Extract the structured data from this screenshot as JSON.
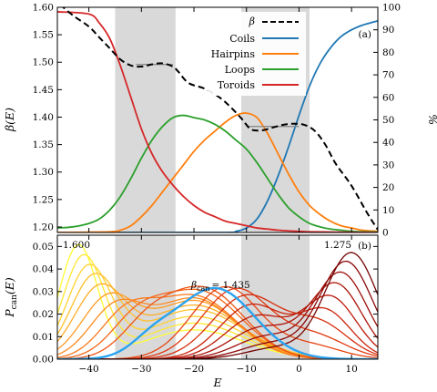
{
  "chart_data": [
    {
      "type": "line",
      "panel_label": "(a)",
      "xlim": [
        -46,
        15
      ],
      "ylim": [
        1.19,
        1.6
      ],
      "y2lim": [
        0,
        100
      ],
      "ylabel": "β(E)",
      "y2label": "%",
      "xticks": [
        -40,
        -30,
        -20,
        -10,
        0,
        10
      ],
      "yticks": [
        1.2,
        1.25,
        1.3,
        1.35,
        1.4,
        1.45,
        1.5,
        1.55,
        1.6
      ],
      "y2ticks": [
        0,
        10,
        20,
        30,
        40,
        50,
        60,
        70,
        80,
        90,
        100
      ],
      "grid": false,
      "legend_position": "top-right",
      "shaded_x_ranges": [
        [
          -35,
          -23.5
        ],
        [
          -11,
          2
        ]
      ],
      "maxwell_lines": [
        {
          "x": [
            -31,
            -24
          ],
          "y": 1.496
        },
        {
          "x": [
            -10,
            0
          ],
          "y": 1.383
        }
      ],
      "beta_series": {
        "name": "β",
        "color": "#000000",
        "style": "dashed",
        "x": [
          -45.5,
          -43,
          -40,
          -38,
          -36,
          -34,
          -32,
          -30,
          -28,
          -26,
          -24,
          -23,
          -21,
          -18,
          -15,
          -13,
          -11,
          -10,
          -9,
          -7,
          -5,
          -3,
          -1,
          1,
          3,
          5,
          7,
          10,
          13,
          15
        ],
        "y": [
          1.605,
          1.585,
          1.565,
          1.545,
          1.525,
          1.505,
          1.494,
          1.492,
          1.496,
          1.498,
          1.492,
          1.483,
          1.462,
          1.452,
          1.435,
          1.418,
          1.398,
          1.386,
          1.377,
          1.376,
          1.381,
          1.386,
          1.388,
          1.386,
          1.375,
          1.35,
          1.315,
          1.275,
          1.225,
          1.195
        ]
      },
      "series": [
        {
          "name": "Coils",
          "color": "#1f77b4",
          "x": [
            -46,
            -15,
            -12,
            -10,
            -8,
            -6,
            -4,
            -2,
            0,
            2,
            4,
            6,
            8,
            10,
            12,
            15
          ],
          "y": [
            0,
            0,
            0.5,
            2,
            6,
            14,
            25,
            38,
            52,
            65,
            75,
            82,
            87,
            90,
            92,
            94
          ]
        },
        {
          "name": "Hairpins",
          "color": "#ff7f0e",
          "x": [
            -46,
            -36,
            -34,
            -32,
            -30,
            -28,
            -26,
            -24,
            -22,
            -20,
            -18,
            -16,
            -14,
            -12,
            -10,
            -8,
            -6,
            -4,
            -2,
            0,
            2,
            4,
            6,
            8,
            10,
            12,
            15
          ],
          "y": [
            0,
            0.3,
            1,
            3,
            7,
            12,
            18,
            24,
            30,
            36,
            41,
            45,
            49,
            52,
            53,
            51,
            44,
            35,
            26,
            18,
            12,
            8,
            5,
            3,
            2,
            1,
            0.5
          ]
        },
        {
          "name": "Loops",
          "color": "#2ca02c",
          "x": [
            -46,
            -43,
            -40,
            -38,
            -36,
            -34,
            -32,
            -30,
            -28,
            -26,
            -24,
            -22,
            -20,
            -18,
            -16,
            -14,
            -12,
            -10,
            -8,
            -6,
            -4,
            -2,
            0,
            2,
            4,
            6,
            8,
            10,
            12,
            15
          ],
          "y": [
            2,
            2.5,
            4,
            6,
            10,
            16,
            24,
            33,
            41,
            47,
            51,
            52,
            51,
            50,
            48,
            45,
            41,
            37,
            31,
            24,
            17,
            11,
            7,
            4,
            2.5,
            1.5,
            1,
            0.5,
            0.3,
            0.2
          ]
        },
        {
          "name": "Toroids",
          "color": "#d62728",
          "x": [
            -46,
            -40,
            -38,
            -36,
            -34,
            -32,
            -30,
            -28,
            -26,
            -24,
            -22,
            -20,
            -18,
            -16,
            -14,
            -12,
            -10,
            -8,
            -6,
            -4,
            -2,
            0,
            2,
            6,
            10,
            15
          ],
          "y": [
            98,
            97,
            93,
            86,
            74,
            60,
            46,
            35,
            27,
            21,
            16,
            12,
            9,
            7,
            5,
            4,
            3,
            2,
            1.5,
            1,
            0.7,
            0.5,
            0.3,
            0.2,
            0.1,
            0
          ]
        }
      ]
    },
    {
      "type": "line",
      "panel_label": "(b)",
      "xlim": [
        -46,
        15
      ],
      "ylim": [
        0,
        0.055
      ],
      "xlabel": "E",
      "ylabel": "Pcan(E)",
      "xticks": [
        -40,
        -30,
        -20,
        -10,
        0,
        10
      ],
      "yticks": [
        0.0,
        0.01,
        0.02,
        0.03,
        0.04,
        0.05
      ],
      "grid": false,
      "shaded_x_ranges": [
        [
          -35,
          -23.5
        ],
        [
          -11,
          2
        ]
      ],
      "annotations": [
        {
          "text": "1.600",
          "x": -43,
          "y": 0.0515
        },
        {
          "text": "1.275",
          "x": 6.5,
          "y": 0.0515
        },
        {
          "text": "β",
          "subscript": "can",
          "value_text": "= 1.435",
          "x": -23,
          "y": 0.0345
        }
      ],
      "series": [
        {
          "beta": 1.6,
          "color": "#ffff33",
          "peaks": [
            [
              -42,
              3.6,
              0.05
            ],
            [
              -20,
              9.5,
              0.013
            ]
          ]
        },
        {
          "beta": 1.59,
          "color": "#ffe733",
          "peaks": [
            [
              -41,
              3.9,
              0.045
            ],
            [
              -20,
              9.5,
              0.016
            ]
          ]
        },
        {
          "beta": 1.58,
          "color": "#ffd22e",
          "peaks": [
            [
              -40,
              4.2,
              0.04
            ],
            [
              -20,
              9.5,
              0.019
            ]
          ]
        },
        {
          "beta": 1.57,
          "color": "#ffc02b",
          "peaks": [
            [
              -39,
              4.5,
              0.035
            ],
            [
              -20,
              9.5,
              0.022
            ]
          ]
        },
        {
          "beta": 1.555,
          "color": "#ffad28",
          "peaks": [
            [
              -38,
              4.8,
              0.03
            ],
            [
              -20,
              9,
              0.024
            ]
          ]
        },
        {
          "beta": 1.535,
          "color": "#ff9b24",
          "peaks": [
            [
              -36.5,
              5,
              0.025
            ],
            [
              -20,
              8.5,
              0.026
            ]
          ]
        },
        {
          "beta": 1.515,
          "color": "#ff8a20",
          "peaks": [
            [
              -35,
              5,
              0.021
            ],
            [
              -20,
              8,
              0.027
            ]
          ]
        },
        {
          "beta": 1.495,
          "color": "#fa781c",
          "peaks": [
            [
              -33,
              5,
              0.017
            ],
            [
              -20,
              8,
              0.028
            ]
          ]
        },
        {
          "beta": 1.475,
          "color": "#f56618",
          "peaks": [
            [
              -31,
              5,
              0.014
            ],
            [
              -19,
              8,
              0.03
            ]
          ]
        },
        {
          "beta": 1.455,
          "color": "#ef5515",
          "peaks": [
            [
              -29,
              5,
              0.012
            ],
            [
              -18,
              7.5,
              0.031
            ]
          ]
        },
        {
          "beta": 1.435,
          "color": "#2aa3f0",
          "highlight": true,
          "peaks": [
            [
              -28,
              4,
              0.006
            ],
            [
              -16,
              7.5,
              0.0315
            ]
          ]
        },
        {
          "beta": 1.42,
          "color": "#e84512",
          "peaks": [
            [
              -14,
              6.5,
              0.032
            ],
            [
              2,
              6,
              0.006
            ]
          ]
        },
        {
          "beta": 1.405,
          "color": "#e0380f",
          "peaks": [
            [
              -12,
              6.5,
              0.031
            ],
            [
              3,
              6,
              0.01
            ]
          ]
        },
        {
          "beta": 1.39,
          "color": "#d62d0d",
          "peaks": [
            [
              -10,
              6.5,
              0.028
            ],
            [
              4,
              5.5,
              0.015
            ]
          ]
        },
        {
          "beta": 1.375,
          "color": "#cc230b",
          "peaks": [
            [
              -9,
              6,
              0.024
            ],
            [
              5,
              5,
              0.021
            ]
          ]
        },
        {
          "beta": 1.355,
          "color": "#bd1a0a",
          "peaks": [
            [
              -8,
              6,
              0.019
            ],
            [
              6,
              5,
              0.027
            ]
          ]
        },
        {
          "beta": 1.335,
          "color": "#ad1309",
          "peaks": [
            [
              -7,
              6,
              0.014
            ],
            [
              7,
              5,
              0.033
            ]
          ]
        },
        {
          "beta": 1.315,
          "color": "#9c0d08",
          "peaks": [
            [
              -6,
              6,
              0.01
            ],
            [
              8,
              5,
              0.038
            ]
          ]
        },
        {
          "beta": 1.295,
          "color": "#8a0807",
          "peaks": [
            [
              -5,
              6,
              0.007
            ],
            [
              9,
              5,
              0.043
            ]
          ]
        },
        {
          "beta": 1.275,
          "color": "#750505",
          "peaks": [
            [
              -4,
              6,
              0.005
            ],
            [
              10,
              5,
              0.047
            ]
          ]
        }
      ]
    }
  ]
}
